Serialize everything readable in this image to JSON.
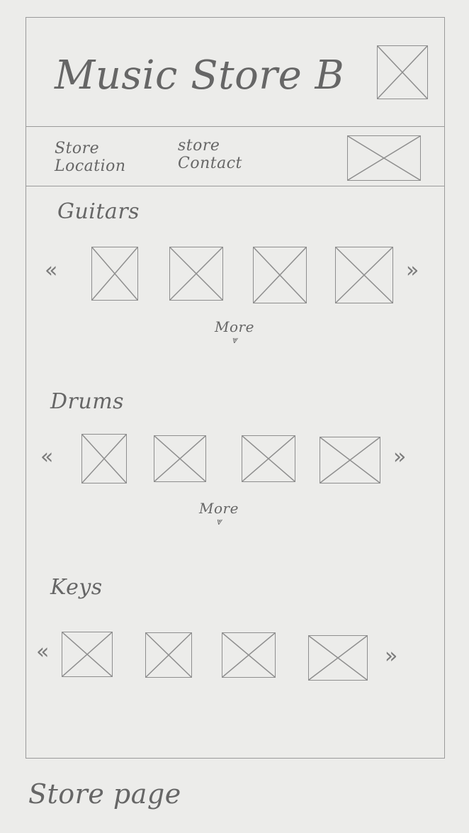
{
  "header": {
    "title": "Music Store B",
    "logo_icon": "image-placeholder-icon"
  },
  "nav": {
    "links": [
      {
        "label": "Store Location"
      },
      {
        "label": "store Contact"
      }
    ],
    "banner_icon": "image-placeholder-icon"
  },
  "sections": [
    {
      "title": "Guitars",
      "more_label": "More",
      "prev_icon": "chevron-left-icon",
      "next_icon": "chevron-right-icon"
    },
    {
      "title": "Drums",
      "more_label": "More",
      "prev_icon": "chevron-left-icon",
      "next_icon": "chevron-right-icon"
    },
    {
      "title": "Keys",
      "prev_icon": "chevron-left-icon",
      "next_icon": "chevron-right-icon"
    }
  ],
  "caption": "Store page"
}
